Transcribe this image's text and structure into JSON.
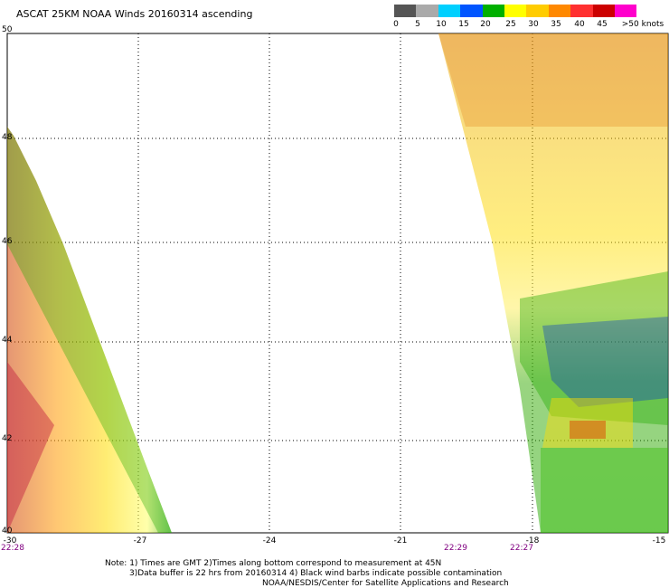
{
  "title": "ASCAT 25KM NOAA Winds 20160314 ascending",
  "legend": {
    "labels": [
      "0",
      "5",
      "10",
      "15",
      "20",
      "25",
      "30",
      "35",
      "40",
      "45",
      ">50 knots"
    ],
    "colors": [
      "#555555",
      "#9a9a9a",
      "#00c8ff",
      "#0055ff",
      "#0000c8",
      "#00b400",
      "#ffff00",
      "#ffc800",
      "#ff8c00",
      "#ff3232",
      "#c80000",
      "#ff00ff",
      "#b400c8",
      "#640096",
      "#280064"
    ]
  },
  "lat_labels": [
    "50",
    "48",
    "46",
    "44",
    "42",
    "40"
  ],
  "lon_labels": [
    "-30",
    "-27",
    "-24",
    "-21",
    "-18",
    "-15"
  ],
  "times": [
    "22:28",
    "22:29",
    "22:27"
  ],
  "notes": [
    "Note: 1) Times are GMT 2)Times along bottom correspond to measurement at 45N",
    "3)Data buffer is 22 hrs from 20160314 4) Black wind barbs indicate possible contamination",
    "NOAA/NESDIS/Center for Satellite Applications and Research"
  ]
}
